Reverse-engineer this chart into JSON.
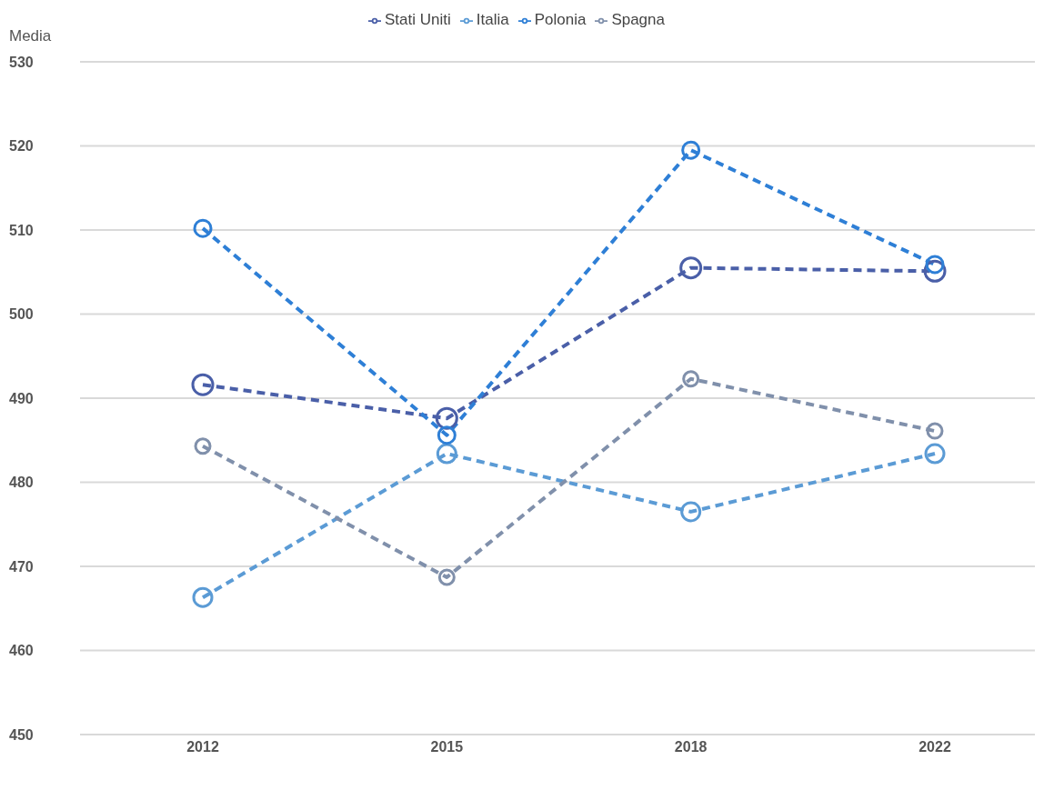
{
  "chart_data": {
    "type": "line",
    "ylabel": "Media",
    "categories": [
      "2012",
      "2015",
      "2018",
      "2022"
    ],
    "series": [
      {
        "name": "Stati Uniti",
        "color": "#4a5fa8",
        "values": [
          491.6,
          487.6,
          505.5,
          505.1
        ]
      },
      {
        "name": "Italia",
        "color": "#5b9bd5",
        "values": [
          466.3,
          483.4,
          476.5,
          483.4
        ]
      },
      {
        "name": "Polonia",
        "color": "#2e7fd6",
        "values": [
          510.2,
          485.6,
          519.5,
          505.9
        ]
      },
      {
        "name": "Spagna",
        "color": "#8090ab",
        "values": [
          484.3,
          468.7,
          492.3,
          486.1
        ]
      }
    ],
    "ylim": [
      450,
      530
    ],
    "yticks": [
      450,
      460,
      470,
      480,
      490,
      500,
      510,
      520,
      530
    ],
    "grid": "y",
    "legend": "top",
    "marker": "circle",
    "line_style": "dashed"
  }
}
